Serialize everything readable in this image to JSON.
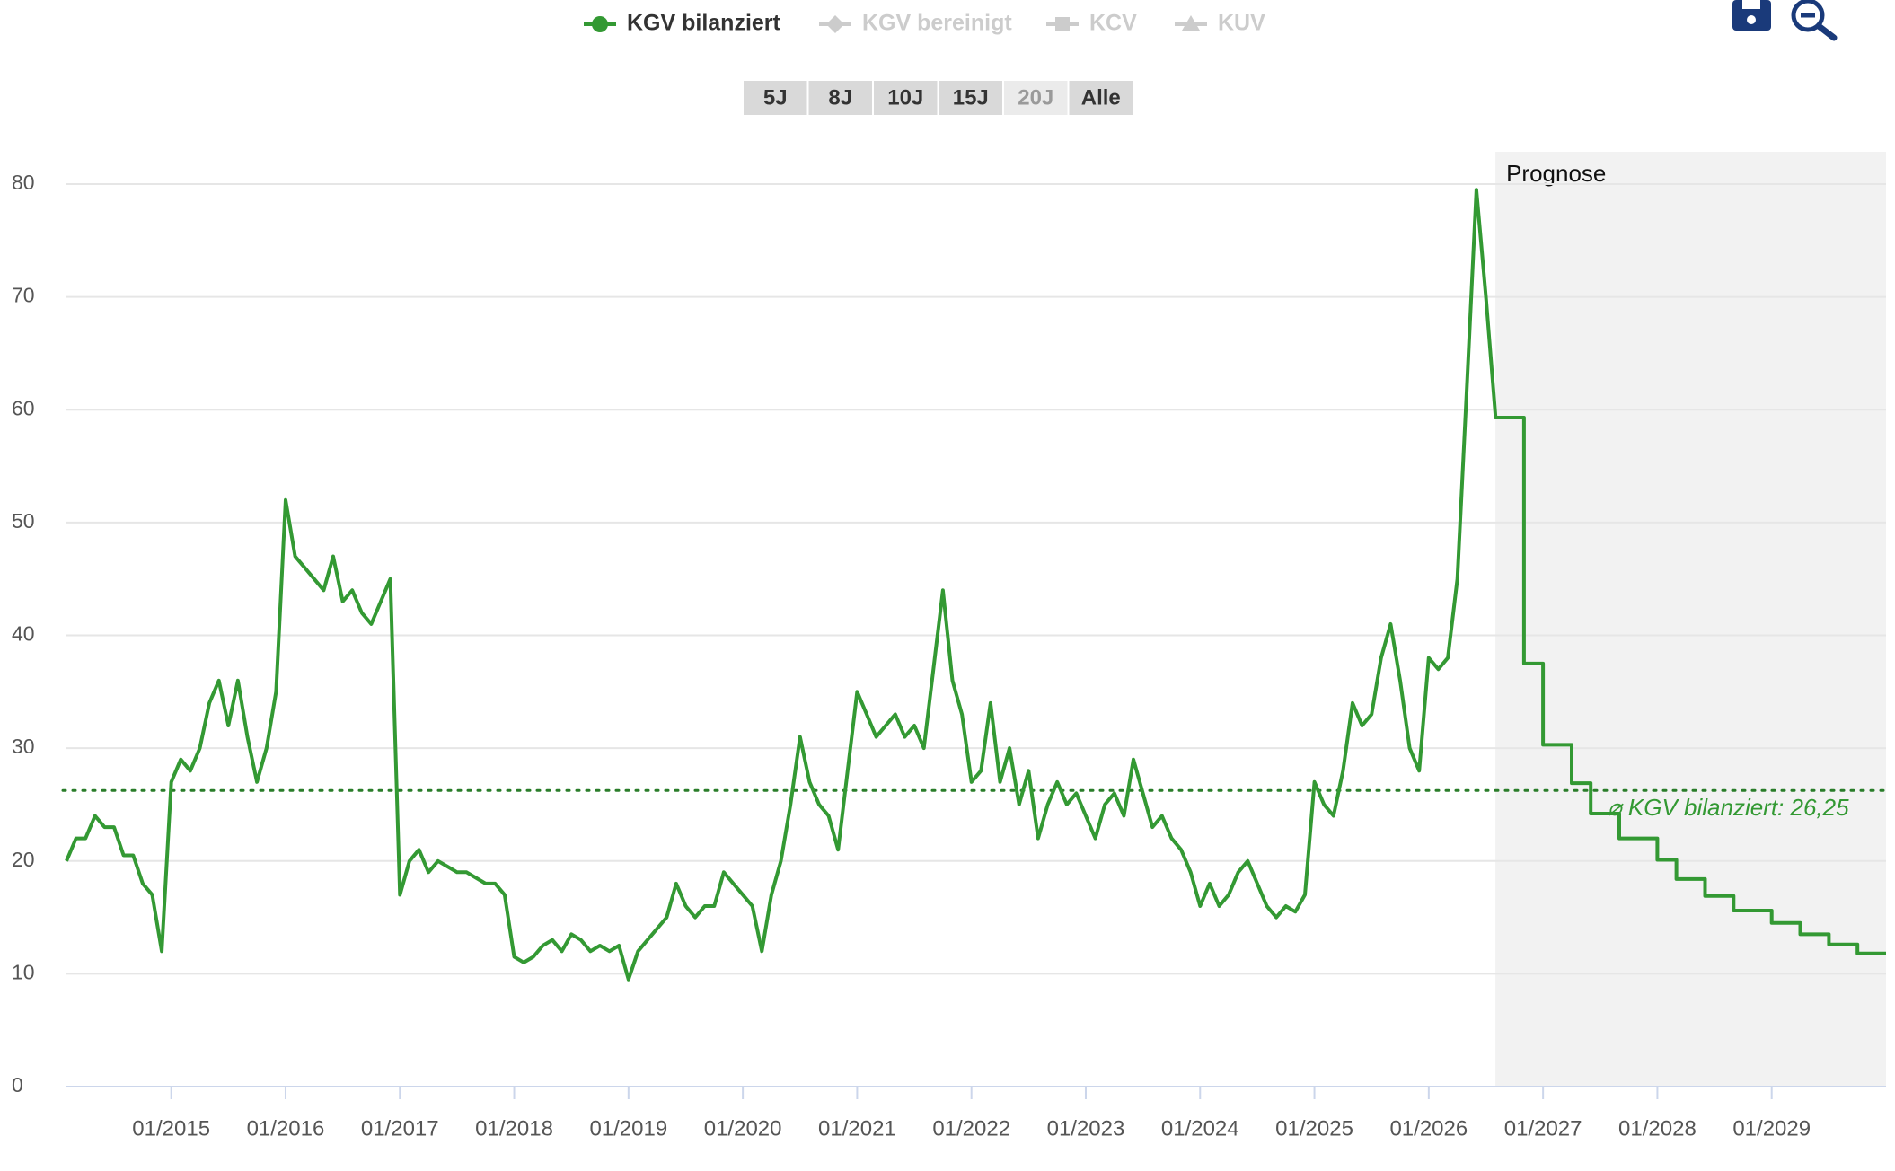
{
  "chart_data": {
    "type": "line",
    "series": [
      {
        "name": "KGV bilanziert",
        "color": "#339933",
        "marker": "circle",
        "values": [
          20,
          22,
          22,
          24,
          23,
          23,
          20.5,
          20.5,
          18,
          17,
          12,
          27,
          29,
          28,
          30,
          34,
          36,
          32,
          36,
          31,
          27,
          30,
          35,
          52,
          47,
          46,
          45,
          44,
          47,
          43,
          44,
          42,
          41,
          43,
          45,
          17,
          20,
          21,
          19,
          20,
          19.5,
          19,
          19,
          18.5,
          18,
          18,
          17,
          11.5,
          11,
          11.5,
          12.5,
          13,
          12,
          13.5,
          13,
          12,
          12.5,
          12,
          12.5,
          9.5,
          12,
          13,
          14,
          15,
          18,
          16,
          15,
          16,
          16,
          19,
          18,
          17,
          16,
          12,
          17,
          20,
          25,
          31,
          27,
          25,
          24,
          21,
          28,
          35,
          33,
          31,
          32,
          33,
          31,
          32,
          30,
          37,
          44,
          36,
          33,
          27,
          28,
          34,
          27,
          30,
          25,
          28,
          22,
          25,
          27,
          25,
          26,
          24,
          22,
          25,
          26,
          24,
          29,
          26,
          23,
          24,
          22,
          21,
          19,
          16,
          18,
          16,
          17,
          19,
          20,
          18,
          16,
          15,
          16,
          15.5,
          17,
          27,
          25,
          24,
          28,
          34,
          32,
          33,
          38,
          41,
          36,
          30,
          28,
          38,
          37,
          38,
          45,
          62,
          79.5,
          70,
          59.5,
          59.3,
          59.3,
          37.5,
          37.5,
          30.3,
          30.3,
          26.9,
          26.9,
          24.2,
          24.2,
          22,
          22,
          20.1,
          20.1,
          18.4,
          18.4,
          16.9,
          16.9,
          15.6,
          15.6,
          14.5,
          14.5,
          13.5,
          13.5,
          12.6,
          12.6,
          11.8,
          11.8
        ]
      }
    ],
    "x": [
      "2014-02",
      "2014-03",
      "2014-04",
      "2014-05",
      "2014-06",
      "2014-07",
      "2014-08",
      "2014-09",
      "2014-10",
      "2014-11",
      "2014-12",
      "2015-01",
      "2015-02",
      "2015-03",
      "2015-04",
      "2015-05",
      "2015-06",
      "2015-07",
      "2015-08",
      "2015-09",
      "2015-10",
      "2015-11",
      "2015-12",
      "2016-01",
      "2016-02",
      "2016-03",
      "2016-04",
      "2016-05",
      "2016-06",
      "2016-07",
      "2016-08",
      "2016-09",
      "2016-10",
      "2016-11",
      "2016-12",
      "2017-01",
      "2017-02",
      "2017-03",
      "2017-04",
      "2017-05",
      "2017-06",
      "2017-07",
      "2017-08",
      "2017-09",
      "2017-10",
      "2017-11",
      "2017-12",
      "2018-01",
      "2018-02",
      "2018-03",
      "2018-04",
      "2018-05",
      "2018-06",
      "2018-07",
      "2018-08",
      "2018-09",
      "2018-10",
      "2018-11",
      "2018-12",
      "2019-01",
      "2019-02",
      "2019-03",
      "2019-04",
      "2019-05",
      "2019-06",
      "2019-07",
      "2019-08",
      "2019-09",
      "2019-10",
      "2019-11",
      "2019-12",
      "2020-01",
      "2020-02",
      "2020-03",
      "2020-04",
      "2020-05",
      "2020-06",
      "2020-07",
      "2020-08",
      "2020-09",
      "2020-10",
      "2020-11",
      "2020-12",
      "2021-01",
      "2021-02",
      "2021-03",
      "2021-04",
      "2021-05",
      "2021-06",
      "2021-07",
      "2021-08",
      "2021-09",
      "2021-10",
      "2021-11",
      "2021-12",
      "2022-01",
      "2022-02",
      "2022-03",
      "2022-04",
      "2022-05",
      "2022-06",
      "2022-07",
      "2022-08",
      "2022-09",
      "2022-10",
      "2022-11",
      "2022-12",
      "2023-01",
      "2023-02",
      "2023-03",
      "2023-04",
      "2023-05",
      "2023-06",
      "2023-07",
      "2023-08",
      "2023-09",
      "2023-10",
      "2023-11",
      "2023-12",
      "2024-01",
      "2024-02",
      "2024-03",
      "2024-04",
      "2024-05",
      "2024-06",
      "2024-07",
      "2024-08",
      "2024-09",
      "2024-10",
      "2024-11",
      "2024-12",
      "2025-01",
      "2025-02",
      "2025-03",
      "2025-04",
      "2025-05",
      "2025-06",
      "2025-07",
      "2025-08",
      "2025-09",
      "2025-10",
      "2025-11",
      "2025-12",
      "2026-01",
      "2026-02",
      "2026-03",
      "2026-04",
      "2026-05",
      "2026-06",
      "2026-07",
      "2026-08",
      "2026-08",
      "2026-11",
      "2026-11",
      "2027-01",
      "2027-01",
      "2027-04",
      "2027-04",
      "2027-06",
      "2027-06",
      "2027-09",
      "2027-09",
      "2028-01",
      "2028-01",
      "2028-03",
      "2028-03",
      "2028-06",
      "2028-06",
      "2028-09",
      "2028-09",
      "2029-01",
      "2029-01",
      "2029-04",
      "2029-04",
      "2029-07",
      "2029-07",
      "2029-10",
      "2029-10",
      "2030-01"
    ],
    "xlim": [
      "2014-02",
      "2030-01"
    ],
    "xticks": [
      {
        "value": "2015-01",
        "label": "01/2015"
      },
      {
        "value": "2016-01",
        "label": "01/2016"
      },
      {
        "value": "2017-01",
        "label": "01/2017"
      },
      {
        "value": "2018-01",
        "label": "01/2018"
      },
      {
        "value": "2019-01",
        "label": "01/2019"
      },
      {
        "value": "2020-01",
        "label": "01/2020"
      },
      {
        "value": "2021-01",
        "label": "01/2021"
      },
      {
        "value": "2022-01",
        "label": "01/2022"
      },
      {
        "value": "2023-01",
        "label": "01/2023"
      },
      {
        "value": "2024-01",
        "label": "01/2024"
      },
      {
        "value": "2025-01",
        "label": "01/2025"
      },
      {
        "value": "2026-01",
        "label": "01/2026"
      },
      {
        "value": "2027-01",
        "label": "01/2027"
      },
      {
        "value": "2028-01",
        "label": "01/2028"
      },
      {
        "value": "2029-01",
        "label": "01/2029"
      }
    ],
    "ylim": [
      0,
      80
    ],
    "yticks": [
      0,
      10,
      20,
      30,
      40,
      50,
      60,
      70,
      80
    ],
    "grid": true,
    "average": {
      "value": 26.25,
      "label": "⌀ KGV bilanziert: 26,25"
    },
    "forecast": {
      "label": "Prognose",
      "start": "2026-08"
    },
    "inactive_series": [
      {
        "name": "KGV bereinigt",
        "marker": "diamond"
      },
      {
        "name": "KCV",
        "marker": "square"
      },
      {
        "name": "KUV",
        "marker": "triangle"
      }
    ],
    "inactive_color": "#cccccc",
    "range_buttons": [
      "5J",
      "8J",
      "10J",
      "15J",
      "20J",
      "Alle"
    ],
    "disabled_button": "20J"
  }
}
